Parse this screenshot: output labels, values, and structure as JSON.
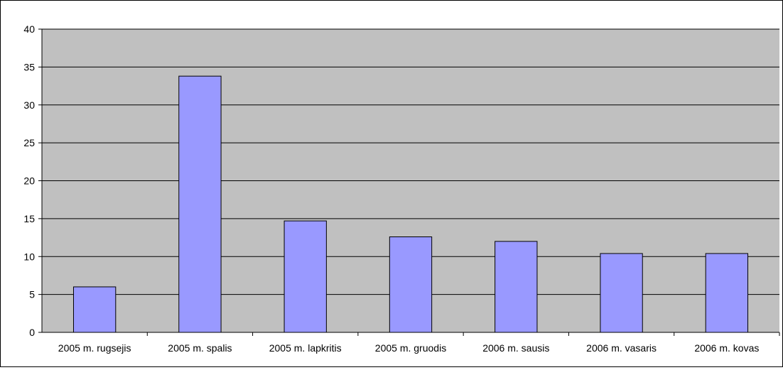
{
  "chart_data": {
    "type": "bar",
    "title": "",
    "xlabel": "",
    "ylabel": "",
    "categories": [
      "2005 m. rugsejis",
      "2005 m. spalis",
      "2005 m. lapkritis",
      "2005 m. gruodis",
      "2006 m. sausis",
      "2006 m. vasaris",
      "2006 m. kovas"
    ],
    "values": [
      6,
      33.8,
      14.7,
      12.6,
      12.0,
      10.4,
      10.4
    ],
    "ylim": [
      0,
      40
    ],
    "yticks": [
      "0",
      "5",
      "10",
      "15",
      "20",
      "25",
      "30",
      "35",
      "40"
    ],
    "grid": true,
    "legend": "none",
    "colors": {
      "plot_background": "#c0c0c0",
      "bar_fill": "#9999ff",
      "bar_stroke": "#000000",
      "gridline": "#000000"
    }
  }
}
